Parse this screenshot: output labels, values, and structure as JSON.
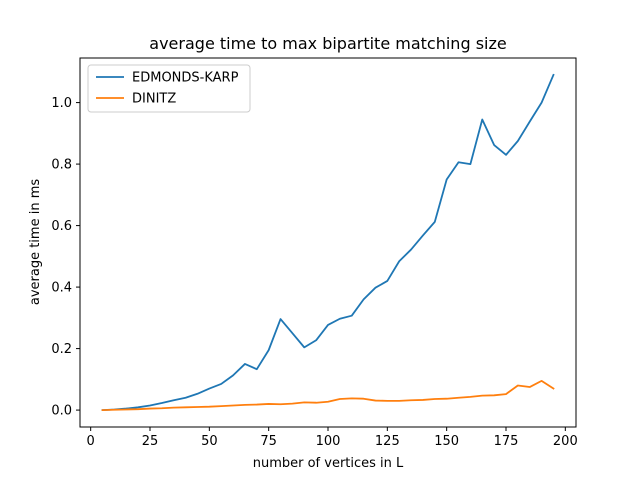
{
  "chart_data": {
    "type": "line",
    "title": "average time to max bipartite matching size",
    "xlabel": "number of vertices in L",
    "ylabel": "average time in ms",
    "xlim": [
      -4.5,
      204.5
    ],
    "ylim": [
      -0.055,
      1.145
    ],
    "xticks": [
      0,
      25,
      50,
      75,
      100,
      125,
      150,
      175,
      200
    ],
    "yticks": [
      0.0,
      0.2,
      0.4,
      0.6,
      0.8,
      1.0
    ],
    "xtick_labels": [
      "0",
      "25",
      "50",
      "75",
      "100",
      "125",
      "150",
      "175",
      "200"
    ],
    "ytick_labels": [
      "0.0",
      "0.2",
      "0.4",
      "0.6",
      "0.8",
      "1.0"
    ],
    "grid": false,
    "legend_position": "top-left",
    "x": [
      5,
      10,
      15,
      20,
      25,
      30,
      35,
      40,
      45,
      50,
      55,
      60,
      65,
      70,
      75,
      80,
      85,
      90,
      95,
      100,
      105,
      110,
      115,
      120,
      125,
      130,
      135,
      140,
      145,
      150,
      155,
      160,
      165,
      170,
      175,
      180,
      185,
      190,
      195
    ],
    "series": [
      {
        "name": "EDMONDS-KARP",
        "color": "#1f77b4",
        "values": [
          0.0,
          0.002,
          0.005,
          0.009,
          0.015,
          0.023,
          0.032,
          0.04,
          0.053,
          0.07,
          0.085,
          0.113,
          0.15,
          0.133,
          0.195,
          0.296,
          0.25,
          0.204,
          0.227,
          0.277,
          0.297,
          0.307,
          0.36,
          0.398,
          0.42,
          0.484,
          0.522,
          0.568,
          0.612,
          0.75,
          0.806,
          0.8,
          0.945,
          0.862,
          0.83,
          0.875,
          0.938,
          1.0,
          1.09
        ]
      },
      {
        "name": "DINITZ",
        "color": "#ff7f0e",
        "values": [
          0.0,
          0.001,
          0.002,
          0.003,
          0.005,
          0.006,
          0.008,
          0.009,
          0.01,
          0.011,
          0.013,
          0.015,
          0.017,
          0.018,
          0.02,
          0.019,
          0.021,
          0.025,
          0.024,
          0.027,
          0.036,
          0.038,
          0.037,
          0.031,
          0.03,
          0.03,
          0.032,
          0.033,
          0.036,
          0.037,
          0.04,
          0.043,
          0.047,
          0.048,
          0.052,
          0.08,
          0.075,
          0.095,
          0.07
        ]
      }
    ]
  }
}
